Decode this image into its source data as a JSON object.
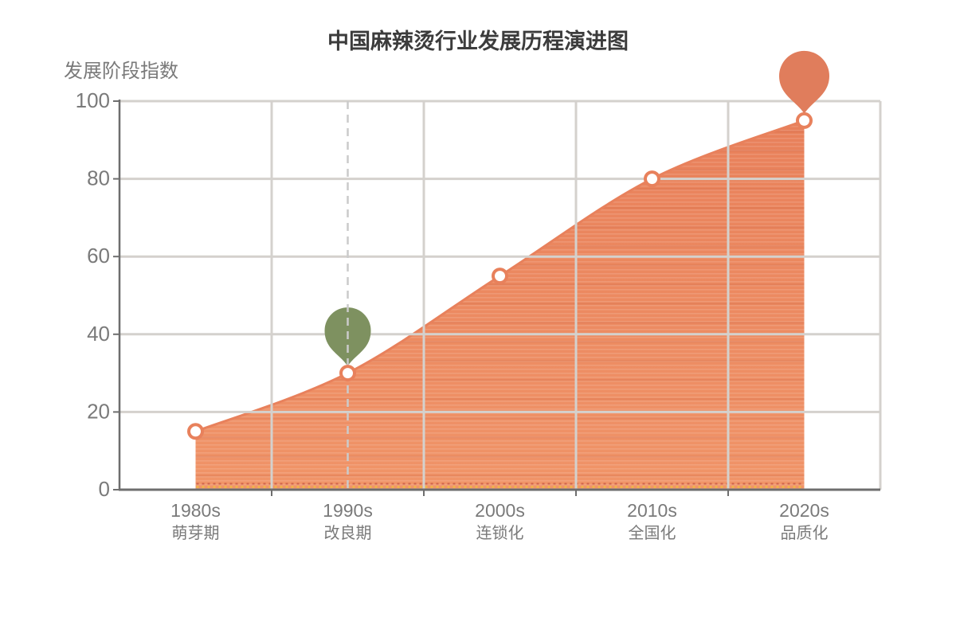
{
  "chart_data": {
    "type": "area",
    "title": "中国麻辣烫行业发展历程演进图",
    "ylabel": "发展阶段指数",
    "categories": [
      "1980s",
      "1990s",
      "2000s",
      "2010s",
      "2020s"
    ],
    "phases": [
      "萌芽期",
      "改良期",
      "连锁化",
      "全国化",
      "品质化"
    ],
    "values": [
      15,
      30,
      55,
      80,
      95
    ],
    "ylim": [
      0,
      100
    ],
    "yticks": [
      0,
      20,
      40,
      60,
      80,
      100
    ],
    "grid": true,
    "smooth": true,
    "milestones": [
      {
        "category": "1990s",
        "index": 1,
        "value": 30,
        "pin_color": "#7E9160",
        "radius": 29
      },
      {
        "category": "2020s",
        "index": 4,
        "value": 95,
        "pin_color": "#E07D5C",
        "radius": 31.5
      }
    ],
    "reference_line": {
      "index": 1,
      "style": "dashed"
    }
  },
  "colors": {
    "area_top": "#E8805A",
    "area_bottom": "#F09468",
    "line": "#E8815C",
    "marker_ring": "#E8815C",
    "marker_fill": "#FFFFFF",
    "grid": "#D4D1CD",
    "axis": "#6E6E6E",
    "tick_text": "#7A7A7A",
    "title_text": "#3C3C3C",
    "dashed_line": "#CBCBCB",
    "dither_red": "#C05040",
    "dither_yellow": "#F0C040"
  }
}
